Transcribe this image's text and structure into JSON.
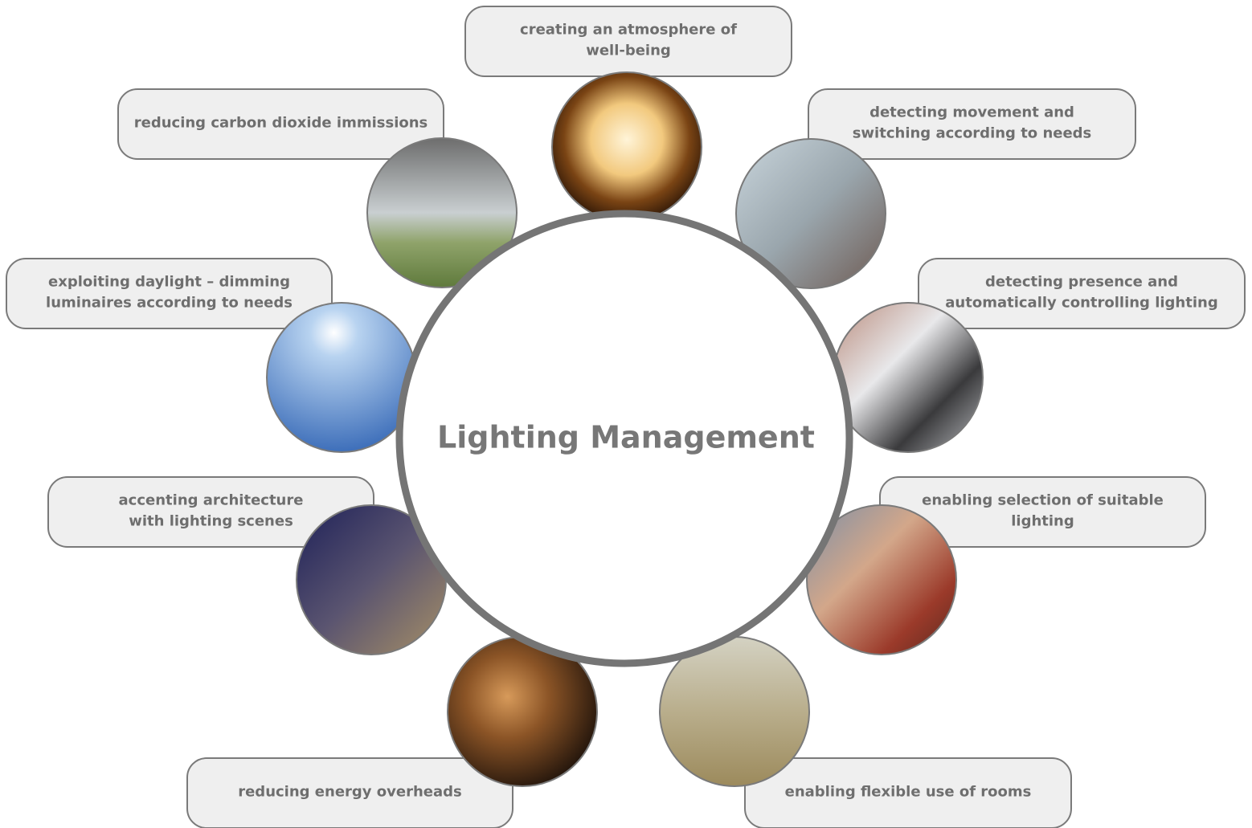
{
  "center": {
    "label": "Lighting Management"
  },
  "nodes": [
    {
      "lines": [
        "creating an atmosphere of",
        "well-being"
      ]
    },
    {
      "lines": [
        "detecting movement and",
        "switching according to needs"
      ]
    },
    {
      "lines": [
        "detecting presence and",
        "automatically controlling lighting"
      ]
    },
    {
      "lines": [
        "enabling selection of suitable",
        "lighting"
      ]
    },
    {
      "lines": [
        "enabling flexible use of rooms"
      ]
    },
    {
      "lines": [
        "reducing energy overheads"
      ]
    },
    {
      "lines": [
        "accenting architecture",
        "with lighting scenes"
      ]
    },
    {
      "lines": [
        "exploiting daylight – dimming",
        "luminaires according to needs"
      ]
    },
    {
      "lines": [
        "reducing carbon dioxide immissions"
      ]
    }
  ]
}
